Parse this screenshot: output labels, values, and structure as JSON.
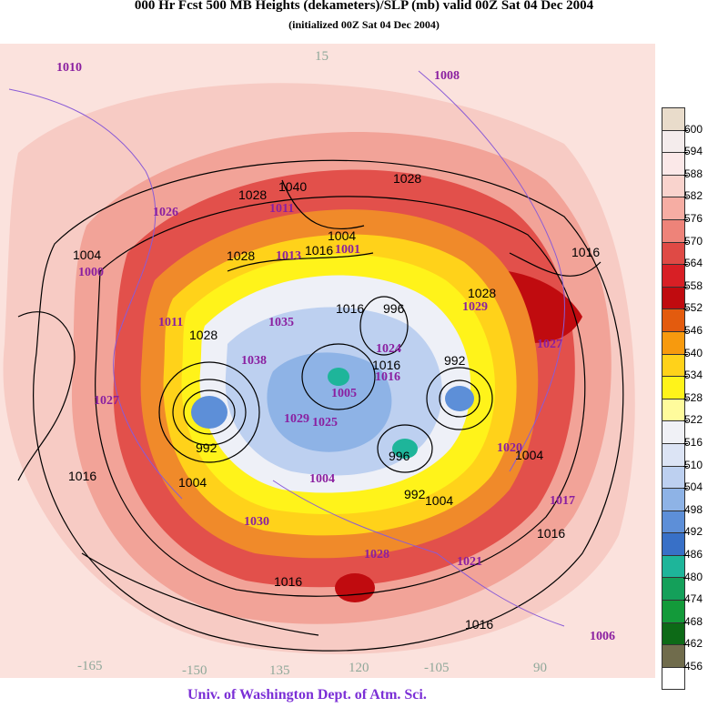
{
  "title": "000 Hr Fcst 500 MB Heights (dekameters)/SLP (mb) valid 00Z Sat 04 Dec 2004",
  "subtitle": "(initialized 00Z Sat 04 Dec 2004)",
  "credit": "Univ. of Washington Dept. of Atm. Sci.",
  "colorbar": {
    "levels": [
      "600",
      "594",
      "588",
      "582",
      "576",
      "570",
      "564",
      "558",
      "552",
      "546",
      "540",
      "534",
      "528",
      "522",
      "516",
      "510",
      "504",
      "498",
      "492",
      "486",
      "480",
      "474",
      "468",
      "462",
      "456"
    ],
    "colors": [
      "#e9dccb",
      "#f4ecec",
      "#fbe8e8",
      "#f9d3cd",
      "#f6ada3",
      "#ee8379",
      "#df4a45",
      "#d81f25",
      "#c00b0f",
      "#e35b0e",
      "#f79a0e",
      "#ffd21a",
      "#fff31a",
      "#fffb9c",
      "#f0f1f6",
      "#dce4f5",
      "#bdd0f0",
      "#8eb3e6",
      "#5d8fd8",
      "#3870c7",
      "#1eb59a",
      "#14a05a",
      "#139a3a",
      "#0d6a17",
      "#706c4c",
      "#ffffff"
    ]
  },
  "map": {
    "longitude_labels": [
      "15",
      "-165",
      "-150",
      "135",
      "120",
      "-105",
      "90"
    ],
    "slp_labels": [
      "1010",
      "1008",
      "1026",
      "1011",
      "1000",
      "1001",
      "1013",
      "1029",
      "1027",
      "1035",
      "1011",
      "1038",
      "1005",
      "1027",
      "1028",
      "1029",
      "1024",
      "1020",
      "1004",
      "1016",
      "1030",
      "1017",
      "1025",
      "1021",
      "1006"
    ],
    "height_labels": [
      "1028",
      "1040",
      "1028",
      "1004",
      "1016",
      "1028",
      "1028",
      "1004",
      "1016",
      "1028",
      "1016",
      "992",
      "1016",
      "992",
      "996",
      "1004",
      "992",
      "1016",
      "1004",
      "1016",
      "1004",
      "1016",
      "1016",
      "996"
    ]
  }
}
